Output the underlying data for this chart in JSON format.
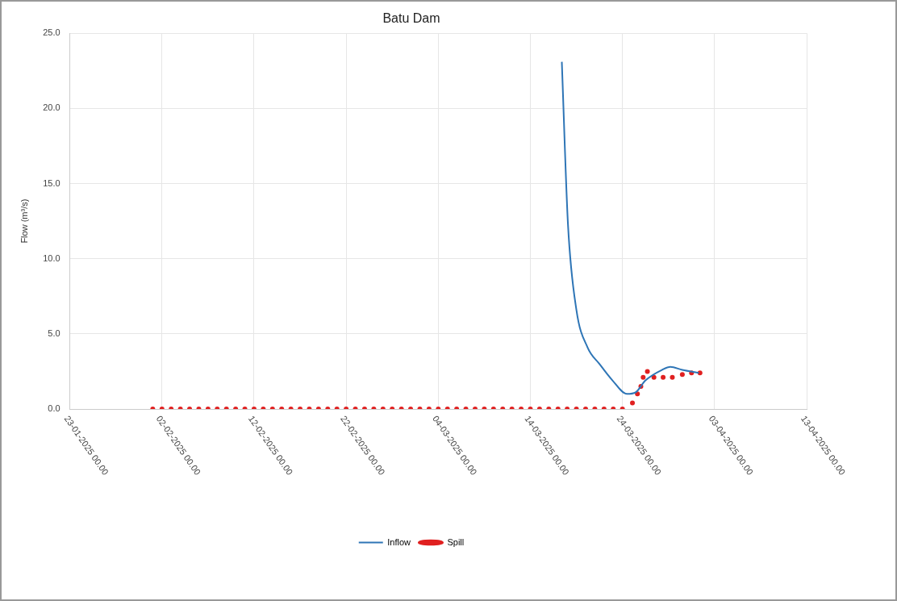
{
  "chart_data": {
    "type": "line",
    "title": "Batu Dam",
    "ylabel": "Flow (m³/s)",
    "xlim": [
      "2025-01-23",
      "2025-04-13"
    ],
    "xticks": [
      {
        "value": "2025-01-23",
        "label": "23-01-2025 00.00"
      },
      {
        "value": "2025-02-02",
        "label": "02-02-2025 00.00"
      },
      {
        "value": "2025-02-12",
        "label": "12-02-2025 00.00"
      },
      {
        "value": "2025-02-22",
        "label": "22-02-2025 00.00"
      },
      {
        "value": "2025-03-04",
        "label": "04-03-2025 00.00"
      },
      {
        "value": "2025-03-14",
        "label": "14-03-2025 00.00"
      },
      {
        "value": "2025-03-24",
        "label": "24-03-2025 00.00"
      },
      {
        "value": "2025-04-03",
        "label": "03-04-2025 00.00"
      },
      {
        "value": "2025-04-13",
        "label": "13-04-2025 00.00"
      }
    ],
    "ylim": [
      0,
      25
    ],
    "yticks": [
      {
        "value": 0,
        "label": "0.0"
      },
      {
        "value": 5,
        "label": "5.0"
      },
      {
        "value": 10,
        "label": "10.0"
      },
      {
        "value": 15,
        "label": "15.0"
      },
      {
        "value": 20,
        "label": "20.0"
      },
      {
        "value": 25,
        "label": "25.0"
      }
    ],
    "grid": true,
    "legend": "bottom",
    "series": [
      {
        "name": "Inflow",
        "type": "line",
        "marker": "none",
        "color": "#2e75b6",
        "x": [
          "2025-03-17T10:00",
          "2025-03-18T02:00",
          "2025-03-19T00:00",
          "2025-03-20T05:00",
          "2025-03-21T12:00",
          "2025-03-22T22:00",
          "2025-03-24T12:00",
          "2025-03-25T10:00",
          "2025-03-26T12:00",
          "2025-03-28T07:00",
          "2025-03-29T05:00",
          "2025-03-30T12:00",
          "2025-04-01T07:00"
        ],
        "values": [
          23.1,
          12.3,
          6.6,
          4.1,
          3.0,
          1.9,
          1.0,
          1.1,
          1.9,
          2.6,
          2.8,
          2.6,
          2.4
        ]
      },
      {
        "name": "Spill",
        "type": "scatter",
        "marker": "circle",
        "color": "#e02020",
        "x": [
          "2025-02-01",
          "2025-02-02",
          "2025-02-03",
          "2025-02-04",
          "2025-02-05",
          "2025-02-06",
          "2025-02-07",
          "2025-02-08",
          "2025-02-09",
          "2025-02-10",
          "2025-02-11",
          "2025-02-12",
          "2025-02-13",
          "2025-02-14",
          "2025-02-15",
          "2025-02-16",
          "2025-02-17",
          "2025-02-18",
          "2025-02-19",
          "2025-02-20",
          "2025-02-21",
          "2025-02-22",
          "2025-02-23",
          "2025-02-24",
          "2025-02-25",
          "2025-02-26",
          "2025-02-27",
          "2025-02-28",
          "2025-03-01",
          "2025-03-02",
          "2025-03-03",
          "2025-03-04",
          "2025-03-05",
          "2025-03-06",
          "2025-03-07",
          "2025-03-08",
          "2025-03-09",
          "2025-03-10",
          "2025-03-11",
          "2025-03-12",
          "2025-03-13",
          "2025-03-14",
          "2025-03-15",
          "2025-03-16",
          "2025-03-17",
          "2025-03-18",
          "2025-03-19",
          "2025-03-20",
          "2025-03-21",
          "2025-03-22",
          "2025-03-23",
          "2025-03-24",
          "2025-03-25T02:00",
          "2025-03-25T15:00",
          "2025-03-26T00:00",
          "2025-03-26T06:00",
          "2025-03-26T17:00",
          "2025-03-27T10:00",
          "2025-03-28T10:00",
          "2025-03-29T10:00",
          "2025-03-30T12:00",
          "2025-03-31T12:00",
          "2025-04-01T10:00"
        ],
        "values": [
          0,
          0,
          0,
          0,
          0,
          0,
          0,
          0,
          0,
          0,
          0,
          0,
          0,
          0,
          0,
          0,
          0,
          0,
          0,
          0,
          0,
          0,
          0,
          0,
          0,
          0,
          0,
          0,
          0,
          0,
          0,
          0,
          0,
          0,
          0,
          0,
          0,
          0,
          0,
          0,
          0,
          0,
          0,
          0,
          0,
          0,
          0,
          0,
          0,
          0,
          0,
          0,
          0.4,
          1.0,
          1.5,
          2.1,
          2.5,
          2.1,
          2.1,
          2.1,
          2.3,
          2.4,
          2.4
        ]
      }
    ]
  }
}
